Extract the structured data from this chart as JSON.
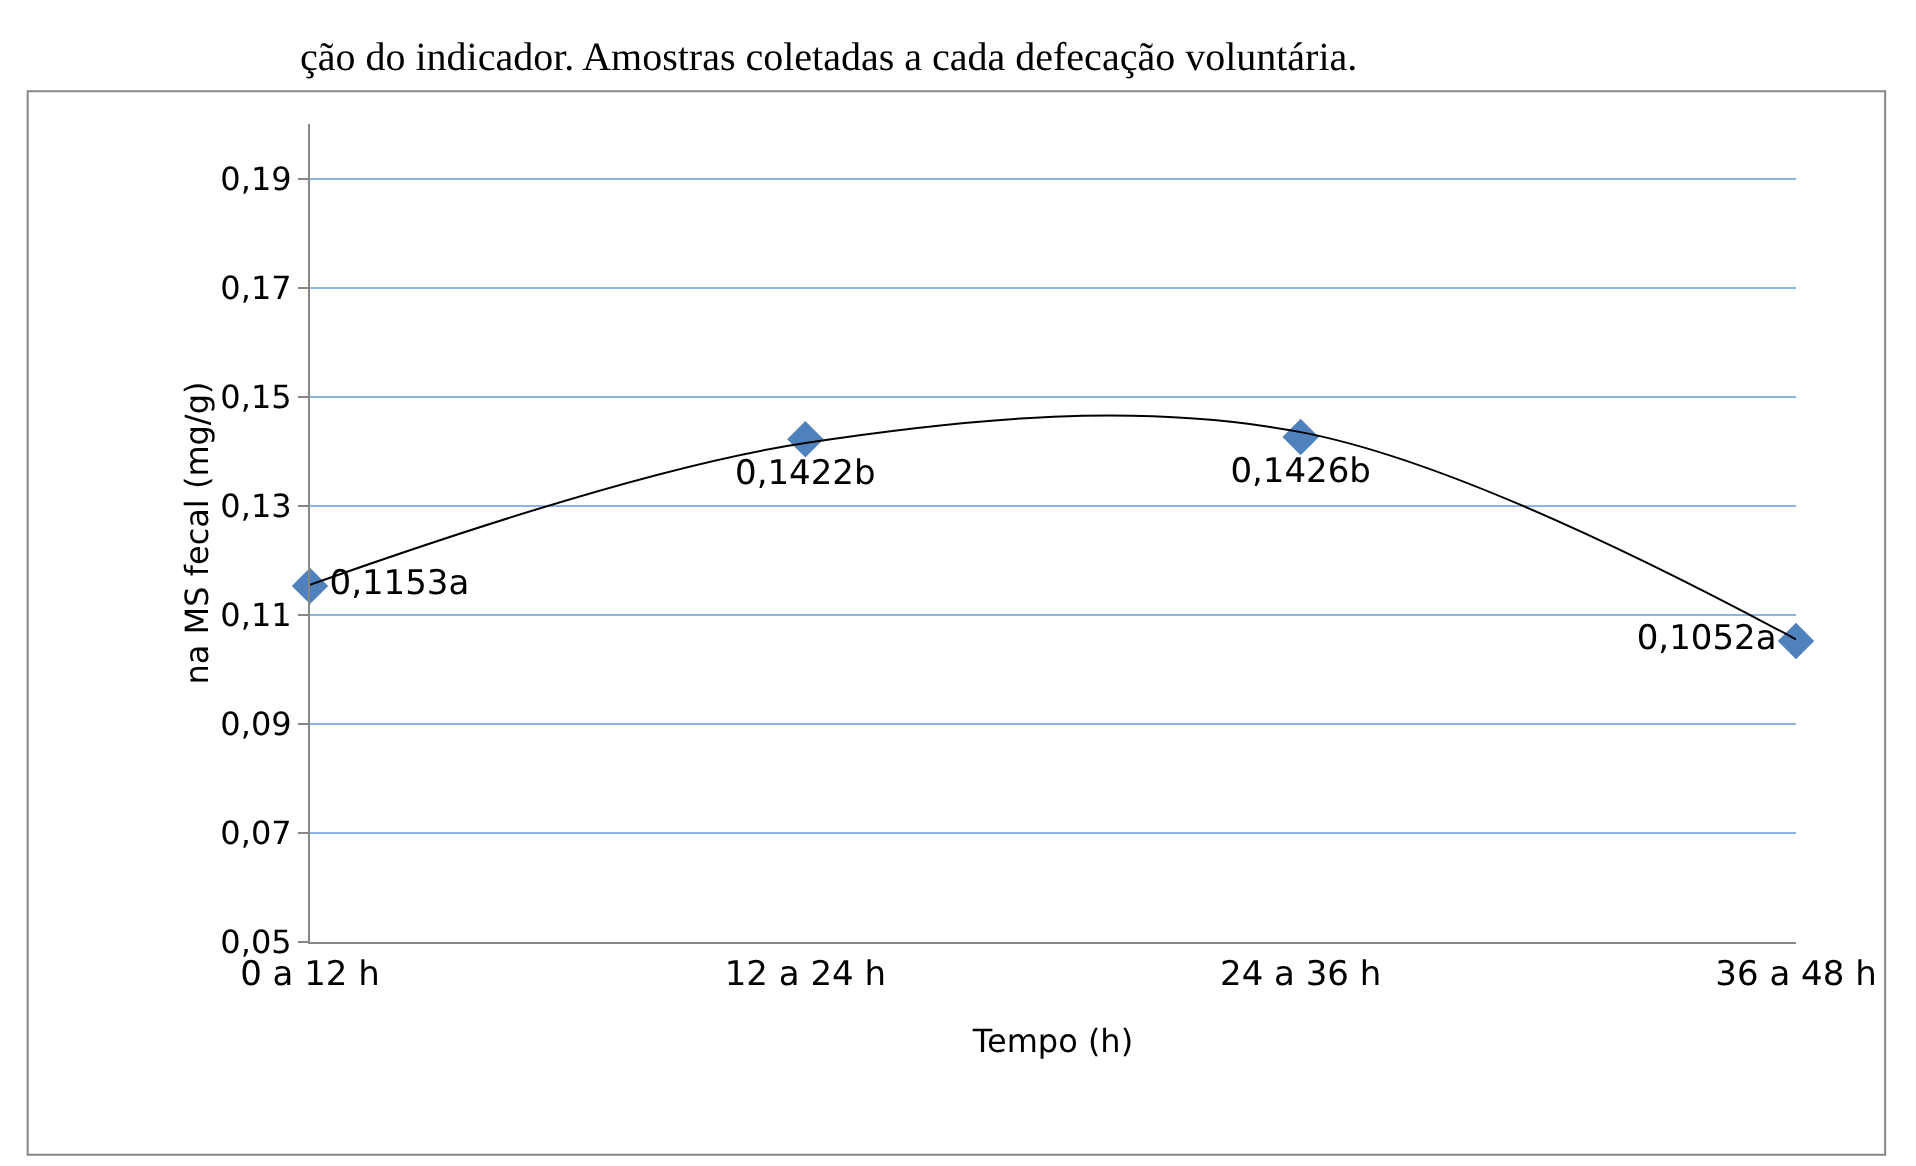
{
  "chart_data": {
    "type": "scatter",
    "xlabel": "Tempo (h)",
    "ylabel": "na MS fecal (mg/g)",
    "annotations": [
      "ção do indicador. Amostras coletadas a cada defecação voluntária."
    ],
    "categories": [
      "0 a 12 h",
      "12 a 24 h",
      "24 a 36 h",
      "36 a 48 h"
    ],
    "series": [
      {
        "color": "#4f81bd",
        "values": [
          0.1153,
          0.1422,
          0.1426,
          0.1052
        ],
        "value_labels": [
          "0,1153a",
          "0,1422b",
          "0,1426b",
          "0,1052a"
        ],
        "marker": "diamond"
      },
      {
        "type": "line",
        "color": "#000000",
        "values": [
          0.1155,
          0.1415,
          0.1435,
          0.1055
        ],
        "marker": "none",
        "line_style": "solid"
      }
    ],
    "ylim": [
      0.05,
      0.2
    ],
    "yticks": [
      {
        "value": 0.05,
        "label": "0,05"
      },
      {
        "value": 0.07,
        "label": "0,07"
      },
      {
        "value": 0.09,
        "label": "0,09"
      },
      {
        "value": 0.11,
        "label": "0,11"
      },
      {
        "value": 0.13,
        "label": "0,13"
      },
      {
        "value": 0.15,
        "label": "0,15"
      },
      {
        "value": 0.17,
        "label": "0,17"
      },
      {
        "value": 0.19,
        "label": "0,19"
      }
    ],
    "grid": "y"
  }
}
